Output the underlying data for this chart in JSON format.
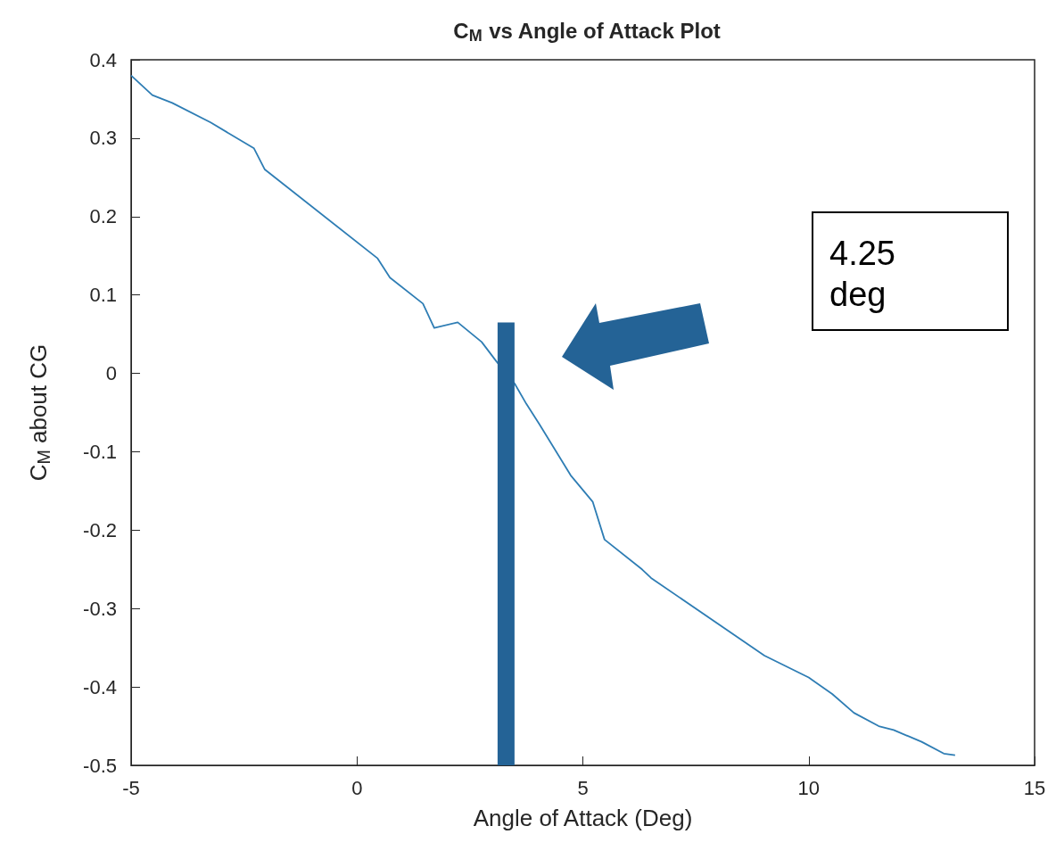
{
  "chart_data": {
    "type": "line",
    "title": "C$_{M}$ vs Angle of Attack Plot",
    "xlabel": "Angle of Attack (Deg)",
    "ylabel": "C$_{M}$ about CG",
    "xlim": [
      -5,
      15
    ],
    "xticks": [
      -5,
      0,
      5,
      10,
      15
    ],
    "ylim": [
      -0.5,
      0.4
    ],
    "yticks": [
      -0.5,
      -0.4,
      -0.3,
      -0.2,
      -0.1,
      0,
      0.1,
      0.2,
      0.3,
      0.4
    ],
    "grid": false,
    "marker": "none",
    "line_style": "solid",
    "series": [
      {
        "color": "#2e7db4",
        "x": [
          -5,
          -4.53,
          -4.09,
          -3.24,
          -2.28,
          -2.04,
          0.45,
          0.73,
          1.46,
          1.71,
          2.23,
          2.76,
          3.09,
          3.49,
          3.75,
          4.04,
          4.73,
          5.22,
          5.48,
          6.31,
          6.51,
          9.02,
          10.0,
          10.52,
          11.0,
          11.55,
          11.88,
          12.5,
          12.99,
          13.24
        ],
        "values": [
          0.38,
          0.355,
          0.345,
          0.32,
          0.287,
          0.26,
          0.147,
          0.122,
          0.089,
          0.058,
          0.065,
          0.04,
          0.015,
          -0.013,
          -0.039,
          -0.065,
          -0.13,
          -0.164,
          -0.212,
          -0.25,
          -0.261,
          -0.36,
          -0.388,
          -0.409,
          -0.433,
          -0.45,
          -0.455,
          -0.47,
          -0.485,
          -0.487
        ]
      },
      {
        "color": "#246396",
        "x": [
          3.3,
          3.3
        ],
        "values": [
          -0.5,
          0.065
        ]
      }
    ],
    "annotations": [
      "4.25 deg"
    ]
  }
}
